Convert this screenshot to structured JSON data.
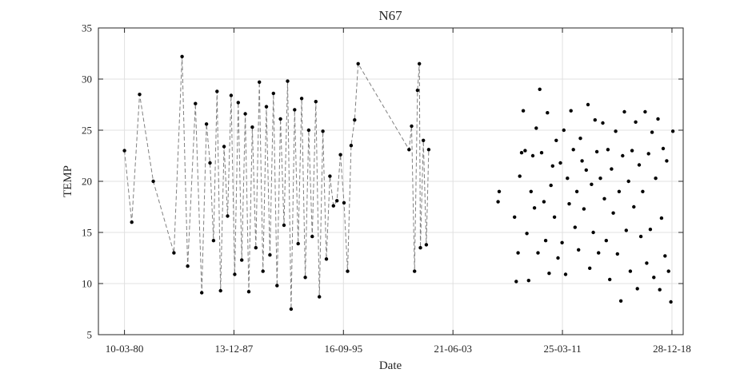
{
  "chart_data": {
    "type": "scatter",
    "title": "N67",
    "xlabel": "Date",
    "ylabel": "TEMP",
    "ylim": [
      5,
      35
    ],
    "yticks": [
      "5",
      "10",
      "15",
      "20",
      "25",
      "30",
      "35"
    ],
    "xlim": [
      "1978-05-05",
      "2019-10-15"
    ],
    "xticks": [
      {
        "date": "1980-03-10",
        "label": "10-03-80"
      },
      {
        "date": "1987-12-13",
        "label": "13-12-87"
      },
      {
        "date": "1995-09-16",
        "label": "16-09-95"
      },
      {
        "date": "2003-06-21",
        "label": "21-06-03"
      },
      {
        "date": "2011-03-25",
        "label": "25-03-11"
      },
      {
        "date": "2018-12-28",
        "label": "28-12-18"
      }
    ],
    "grid": true,
    "colors": {
      "dots": "#000000",
      "connector": "#808080",
      "grid": "#e0e0e0",
      "axes": "#262626"
    },
    "series": [
      {
        "style": "dashed-connected",
        "x": [
          "1980-03-10",
          "1980-09-15",
          "1981-04-05",
          "1982-03-25",
          "1983-09-10",
          "1984-04-10",
          "1984-09-01",
          "1985-03-20",
          "1985-09-01",
          "1986-01-01",
          "1986-04-01",
          "1986-07-01",
          "1986-10-01",
          "1987-01-01",
          "1987-04-01",
          "1987-07-01",
          "1987-10-01",
          "1988-01-01",
          "1988-04-01",
          "1988-07-01",
          "1988-10-01",
          "1989-01-01",
          "1989-04-01",
          "1989-07-01",
          "1989-10-01",
          "1990-01-01",
          "1990-04-01",
          "1990-07-01",
          "1990-10-01",
          "1991-01-01",
          "1991-04-01",
          "1991-07-01",
          "1991-10-01",
          "1992-01-01",
          "1992-04-01",
          "1992-07-01",
          "1992-10-01",
          "1993-01-01",
          "1993-04-01",
          "1993-07-01",
          "1993-10-01",
          "1994-01-01",
          "1994-04-01",
          "1994-07-01",
          "1994-10-01",
          "1995-01-01",
          "1995-04-01",
          "1995-07-01",
          "1995-10-01",
          "1996-01-01",
          "1996-04-01",
          "1996-07-01",
          "1996-10-01",
          "2000-05-10",
          "2000-07-15",
          "2000-10-01",
          "2000-12-15",
          "2001-02-01",
          "2001-03-01",
          "2001-05-15",
          "2001-08-01",
          "2001-10-01"
        ],
        "y": [
          23.0,
          16.0,
          28.5,
          20.0,
          13.0,
          32.2,
          11.7,
          27.6,
          9.1,
          25.6,
          21.8,
          14.2,
          28.8,
          9.3,
          23.4,
          16.6,
          28.4,
          10.9,
          27.7,
          12.3,
          26.6,
          9.2,
          25.3,
          13.5,
          29.7,
          11.2,
          27.3,
          12.8,
          28.6,
          9.8,
          26.1,
          15.7,
          29.8,
          7.5,
          27.0,
          13.9,
          28.1,
          10.6,
          25.0,
          14.6,
          27.8,
          8.7,
          24.9,
          12.4,
          20.5,
          17.6,
          18.1,
          22.6,
          17.9,
          11.2,
          23.5,
          26.0,
          31.5,
          23.1,
          25.4,
          11.2,
          28.9,
          31.5,
          13.5,
          24.0,
          13.8,
          23.1
        ]
      },
      {
        "style": "dots",
        "x": [
          "2006-09-01",
          "2006-10-01",
          "2007-11-01",
          "2007-12-15",
          "2008-02-01",
          "2008-03-15",
          "2008-05-01",
          "2008-06-15",
          "2008-08-01",
          "2008-09-15",
          "2008-11-01",
          "2009-01-01",
          "2009-02-15",
          "2009-04-01",
          "2009-05-15",
          "2009-07-01",
          "2009-08-15",
          "2009-10-01",
          "2009-12-01",
          "2010-01-15",
          "2010-03-01",
          "2010-04-15",
          "2010-06-01",
          "2010-07-15",
          "2010-09-01",
          "2010-10-15",
          "2010-12-01",
          "2011-02-01",
          "2011-03-15",
          "2011-05-01",
          "2011-06-15",
          "2011-08-01",
          "2011-09-15",
          "2011-11-01",
          "2012-01-01",
          "2012-02-15",
          "2012-04-01",
          "2012-05-15",
          "2012-07-01",
          "2012-08-15",
          "2012-10-01",
          "2012-12-01",
          "2013-01-15",
          "2013-03-01",
          "2013-04-15",
          "2013-06-01",
          "2013-07-15",
          "2013-09-01",
          "2013-10-15",
          "2013-12-01",
          "2014-02-01",
          "2014-03-15",
          "2014-05-01",
          "2014-06-15",
          "2014-08-01",
          "2014-09-15",
          "2014-11-01",
          "2015-01-01",
          "2015-02-15",
          "2015-04-01",
          "2015-05-15",
          "2015-07-01",
          "2015-08-15",
          "2015-10-01",
          "2015-12-01",
          "2016-01-15",
          "2016-03-01",
          "2016-04-15",
          "2016-06-01",
          "2016-07-15",
          "2016-09-01",
          "2016-10-15",
          "2016-12-01",
          "2017-02-01",
          "2017-03-15",
          "2017-05-01",
          "2017-06-15",
          "2017-08-01",
          "2017-09-15",
          "2017-11-01",
          "2018-01-01",
          "2018-02-15",
          "2018-04-01",
          "2018-05-15",
          "2018-07-01",
          "2018-08-15",
          "2018-10-01",
          "2018-12-01",
          "2019-01-20"
        ],
        "y": [
          18.0,
          19.0,
          16.5,
          10.2,
          13.0,
          20.5,
          22.8,
          26.9,
          23.0,
          14.9,
          10.3,
          19.0,
          22.5,
          17.4,
          25.2,
          13.0,
          29.0,
          22.8,
          18.0,
          14.2,
          26.7,
          11.0,
          19.6,
          21.5,
          16.5,
          24.0,
          12.5,
          21.8,
          14.0,
          25.0,
          10.9,
          20.3,
          17.8,
          26.9,
          23.1,
          15.5,
          19.0,
          13.3,
          24.2,
          22.0,
          17.3,
          21.1,
          27.5,
          11.5,
          19.7,
          15.0,
          26.0,
          22.9,
          13.0,
          20.3,
          25.7,
          18.3,
          14.2,
          23.1,
          10.4,
          21.2,
          16.9,
          24.9,
          12.9,
          19.0,
          8.3,
          22.5,
          26.8,
          15.2,
          20.0,
          11.2,
          23.0,
          17.5,
          25.8,
          9.5,
          21.6,
          14.6,
          19.0,
          26.8,
          12.0,
          22.7,
          15.3,
          24.8,
          10.6,
          20.3,
          26.1,
          9.4,
          16.4,
          23.2,
          12.7,
          22.0,
          11.2,
          8.2,
          24.9
        ]
      }
    ]
  }
}
